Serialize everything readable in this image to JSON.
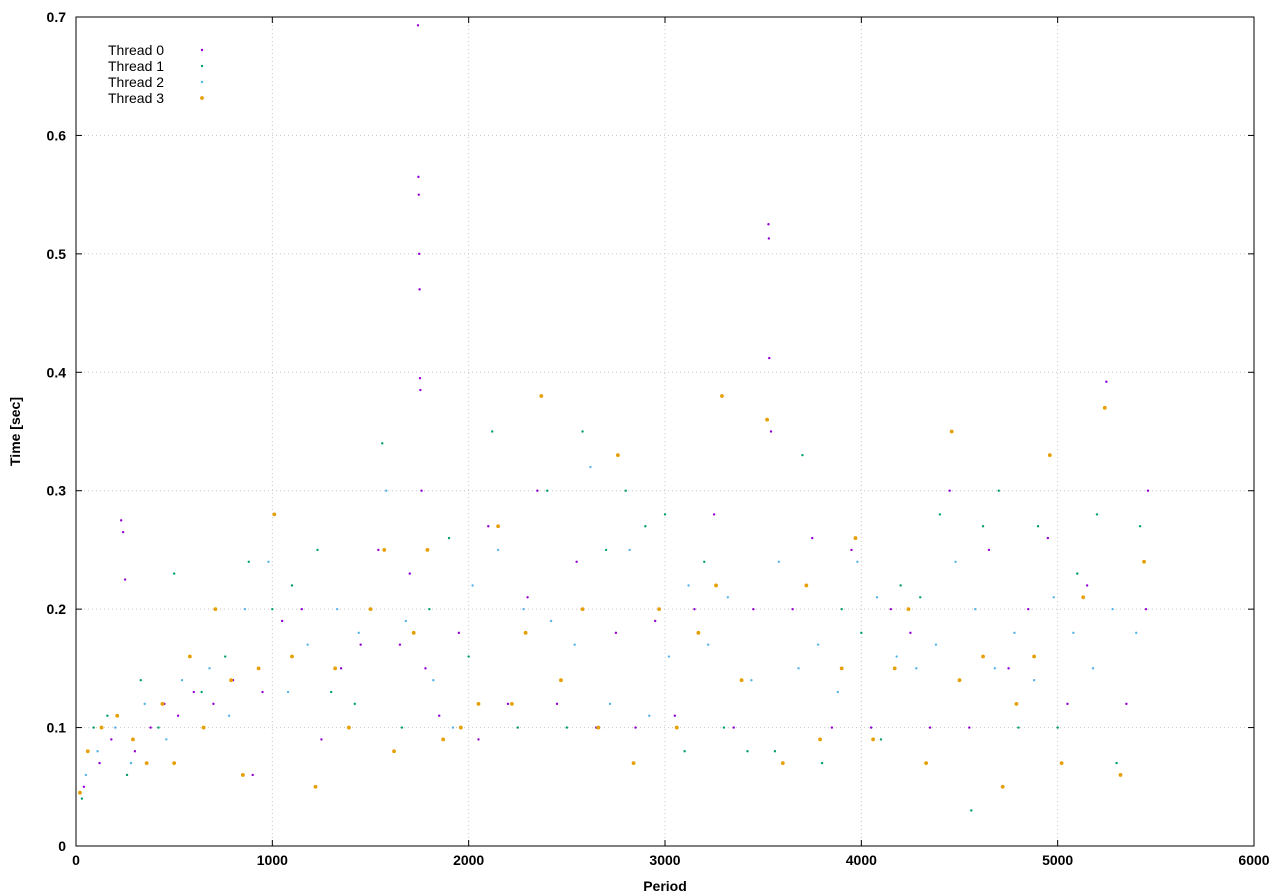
{
  "chart_data": {
    "type": "scatter",
    "title": "",
    "xlabel": "Period",
    "ylabel": "Time [sec]",
    "xlim": [
      0,
      6000
    ],
    "ylim": [
      0,
      0.7
    ],
    "xticks": [
      0,
      1000,
      2000,
      3000,
      4000,
      5000,
      6000
    ],
    "yticks": [
      0,
      0.1,
      0.2,
      0.3,
      0.4,
      0.5,
      0.6,
      0.7
    ],
    "xtick_labels": [
      "0",
      "1000",
      "2000",
      "3000",
      "4000",
      "5000",
      "6000"
    ],
    "ytick_labels": [
      "0",
      "0.1",
      "0.2",
      "0.3",
      "0.4",
      "0.5",
      "0.6",
      "0.7"
    ],
    "grid": true,
    "legend_position": "top-left",
    "series": [
      {
        "name": "Thread 0",
        "color": "#9400d3",
        "marker": "dot",
        "points": [
          [
            40,
            0.05
          ],
          [
            120,
            0.07
          ],
          [
            180,
            0.09
          ],
          [
            230,
            0.275
          ],
          [
            240,
            0.265
          ],
          [
            250,
            0.225
          ],
          [
            300,
            0.08
          ],
          [
            380,
            0.1
          ],
          [
            450,
            0.12
          ],
          [
            520,
            0.11
          ],
          [
            600,
            0.13
          ],
          [
            700,
            0.12
          ],
          [
            800,
            0.14
          ],
          [
            900,
            0.06
          ],
          [
            950,
            0.13
          ],
          [
            1050,
            0.19
          ],
          [
            1150,
            0.2
          ],
          [
            1250,
            0.09
          ],
          [
            1350,
            0.15
          ],
          [
            1450,
            0.17
          ],
          [
            1540,
            0.25
          ],
          [
            1650,
            0.17
          ],
          [
            1700,
            0.23
          ],
          [
            1742,
            0.693
          ],
          [
            1744,
            0.565
          ],
          [
            1746,
            0.55
          ],
          [
            1748,
            0.5
          ],
          [
            1750,
            0.47
          ],
          [
            1752,
            0.395
          ],
          [
            1754,
            0.385
          ],
          [
            1760,
            0.3
          ],
          [
            1780,
            0.15
          ],
          [
            1850,
            0.11
          ],
          [
            1950,
            0.18
          ],
          [
            2050,
            0.09
          ],
          [
            2100,
            0.27
          ],
          [
            2200,
            0.12
          ],
          [
            2300,
            0.21
          ],
          [
            2350,
            0.3
          ],
          [
            2450,
            0.12
          ],
          [
            2550,
            0.24
          ],
          [
            2650,
            0.1
          ],
          [
            2750,
            0.18
          ],
          [
            2850,
            0.1
          ],
          [
            2950,
            0.19
          ],
          [
            3050,
            0.11
          ],
          [
            3150,
            0.2
          ],
          [
            3250,
            0.28
          ],
          [
            3350,
            0.1
          ],
          [
            3450,
            0.2
          ],
          [
            3527,
            0.525
          ],
          [
            3529,
            0.513
          ],
          [
            3531,
            0.412
          ],
          [
            3540,
            0.35
          ],
          [
            3650,
            0.2
          ],
          [
            3750,
            0.26
          ],
          [
            3850,
            0.1
          ],
          [
            3950,
            0.25
          ],
          [
            4050,
            0.1
          ],
          [
            4150,
            0.2
          ],
          [
            4250,
            0.18
          ],
          [
            4350,
            0.1
          ],
          [
            4450,
            0.3
          ],
          [
            4550,
            0.1
          ],
          [
            4650,
            0.25
          ],
          [
            4750,
            0.15
          ],
          [
            4850,
            0.2
          ],
          [
            4950,
            0.26
          ],
          [
            5050,
            0.12
          ],
          [
            5150,
            0.22
          ],
          [
            5248,
            0.392
          ],
          [
            5350,
            0.12
          ],
          [
            5450,
            0.2
          ],
          [
            5460,
            0.3
          ]
        ]
      },
      {
        "name": "Thread 1",
        "color": "#009e73",
        "marker": "dot",
        "points": [
          [
            30,
            0.04
          ],
          [
            90,
            0.1
          ],
          [
            160,
            0.11
          ],
          [
            260,
            0.06
          ],
          [
            330,
            0.14
          ],
          [
            420,
            0.1
          ],
          [
            500,
            0.23
          ],
          [
            640,
            0.13
          ],
          [
            760,
            0.16
          ],
          [
            880,
            0.24
          ],
          [
            1000,
            0.2
          ],
          [
            1100,
            0.22
          ],
          [
            1230,
            0.25
          ],
          [
            1300,
            0.13
          ],
          [
            1420,
            0.12
          ],
          [
            1560,
            0.34
          ],
          [
            1660,
            0.1
          ],
          [
            1800,
            0.2
          ],
          [
            1900,
            0.26
          ],
          [
            2000,
            0.16
          ],
          [
            2120,
            0.35
          ],
          [
            2250,
            0.1
          ],
          [
            2400,
            0.3
          ],
          [
            2500,
            0.1
          ],
          [
            2580,
            0.35
          ],
          [
            2700,
            0.25
          ],
          [
            2800,
            0.3
          ],
          [
            2900,
            0.27
          ],
          [
            3000,
            0.28
          ],
          [
            3100,
            0.08
          ],
          [
            3200,
            0.24
          ],
          [
            3300,
            0.1
          ],
          [
            3420,
            0.08
          ],
          [
            3560,
            0.08
          ],
          [
            3700,
            0.33
          ],
          [
            3800,
            0.07
          ],
          [
            3900,
            0.2
          ],
          [
            4000,
            0.18
          ],
          [
            4100,
            0.09
          ],
          [
            4200,
            0.22
          ],
          [
            4300,
            0.21
          ],
          [
            4400,
            0.28
          ],
          [
            4560,
            0.03
          ],
          [
            4620,
            0.27
          ],
          [
            4700,
            0.3
          ],
          [
            4800,
            0.1
          ],
          [
            4900,
            0.27
          ],
          [
            5000,
            0.1
          ],
          [
            5100,
            0.23
          ],
          [
            5200,
            0.28
          ],
          [
            5300,
            0.07
          ],
          [
            5420,
            0.27
          ]
        ]
      },
      {
        "name": "Thread 2",
        "color": "#56b4e9",
        "marker": "dot",
        "points": [
          [
            50,
            0.06
          ],
          [
            110,
            0.08
          ],
          [
            200,
            0.1
          ],
          [
            280,
            0.07
          ],
          [
            350,
            0.12
          ],
          [
            460,
            0.09
          ],
          [
            540,
            0.14
          ],
          [
            680,
            0.15
          ],
          [
            780,
            0.11
          ],
          [
            860,
            0.2
          ],
          [
            980,
            0.24
          ],
          [
            1080,
            0.13
          ],
          [
            1180,
            0.17
          ],
          [
            1330,
            0.2
          ],
          [
            1440,
            0.18
          ],
          [
            1580,
            0.3
          ],
          [
            1680,
            0.19
          ],
          [
            1820,
            0.14
          ],
          [
            1920,
            0.1
          ],
          [
            2020,
            0.22
          ],
          [
            2150,
            0.25
          ],
          [
            2280,
            0.2
          ],
          [
            2420,
            0.19
          ],
          [
            2540,
            0.17
          ],
          [
            2620,
            0.32
          ],
          [
            2720,
            0.12
          ],
          [
            2820,
            0.25
          ],
          [
            2920,
            0.11
          ],
          [
            3020,
            0.16
          ],
          [
            3120,
            0.22
          ],
          [
            3220,
            0.17
          ],
          [
            3320,
            0.21
          ],
          [
            3440,
            0.14
          ],
          [
            3580,
            0.24
          ],
          [
            3680,
            0.15
          ],
          [
            3780,
            0.17
          ],
          [
            3880,
            0.13
          ],
          [
            3980,
            0.24
          ],
          [
            4080,
            0.21
          ],
          [
            4180,
            0.16
          ],
          [
            4280,
            0.15
          ],
          [
            4380,
            0.17
          ],
          [
            4480,
            0.24
          ],
          [
            4580,
            0.2
          ],
          [
            4680,
            0.15
          ],
          [
            4780,
            0.18
          ],
          [
            4880,
            0.14
          ],
          [
            4980,
            0.21
          ],
          [
            5080,
            0.18
          ],
          [
            5180,
            0.15
          ],
          [
            5280,
            0.2
          ],
          [
            5400,
            0.18
          ]
        ]
      },
      {
        "name": "Thread 3",
        "color": "#e69f00",
        "marker": "dot",
        "points": [
          [
            20,
            0.045
          ],
          [
            60,
            0.08
          ],
          [
            130,
            0.1
          ],
          [
            210,
            0.11
          ],
          [
            290,
            0.09
          ],
          [
            360,
            0.07
          ],
          [
            440,
            0.12
          ],
          [
            500,
            0.07
          ],
          [
            580,
            0.16
          ],
          [
            650,
            0.1
          ],
          [
            710,
            0.2
          ],
          [
            790,
            0.14
          ],
          [
            850,
            0.06
          ],
          [
            930,
            0.15
          ],
          [
            1010,
            0.28
          ],
          [
            1100,
            0.16
          ],
          [
            1220,
            0.05
          ],
          [
            1320,
            0.15
          ],
          [
            1390,
            0.1
          ],
          [
            1500,
            0.2
          ],
          [
            1570,
            0.25
          ],
          [
            1620,
            0.08
          ],
          [
            1720,
            0.18
          ],
          [
            1790,
            0.25
          ],
          [
            1870,
            0.09
          ],
          [
            1960,
            0.1
          ],
          [
            2050,
            0.12
          ],
          [
            2150,
            0.27
          ],
          [
            2220,
            0.12
          ],
          [
            2290,
            0.18
          ],
          [
            2370,
            0.38
          ],
          [
            2470,
            0.14
          ],
          [
            2580,
            0.2
          ],
          [
            2660,
            0.1
          ],
          [
            2760,
            0.33
          ],
          [
            2840,
            0.07
          ],
          [
            2970,
            0.2
          ],
          [
            3060,
            0.1
          ],
          [
            3170,
            0.18
          ],
          [
            3260,
            0.22
          ],
          [
            3290,
            0.38
          ],
          [
            3390,
            0.14
          ],
          [
            3520,
            0.36
          ],
          [
            3600,
            0.07
          ],
          [
            3720,
            0.22
          ],
          [
            3790,
            0.09
          ],
          [
            3900,
            0.15
          ],
          [
            3970,
            0.26
          ],
          [
            4060,
            0.09
          ],
          [
            4170,
            0.15
          ],
          [
            4240,
            0.2
          ],
          [
            4330,
            0.07
          ],
          [
            4460,
            0.35
          ],
          [
            4500,
            0.14
          ],
          [
            4620,
            0.16
          ],
          [
            4720,
            0.05
          ],
          [
            4790,
            0.12
          ],
          [
            4880,
            0.16
          ],
          [
            4960,
            0.33
          ],
          [
            5020,
            0.07
          ],
          [
            5130,
            0.21
          ],
          [
            5240,
            0.37
          ],
          [
            5320,
            0.06
          ],
          [
            5440,
            0.24
          ]
        ]
      }
    ]
  }
}
